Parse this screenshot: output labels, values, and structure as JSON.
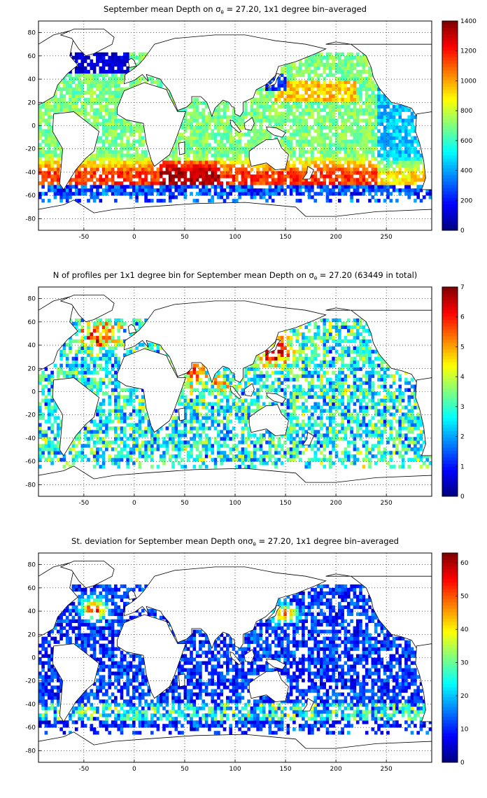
{
  "chart_data": [
    {
      "type": "heatmap",
      "title": {
        "pre": "September mean Depth on ",
        "sigma": "σ",
        "sub": "θ",
        "post": " = 27.20, 1x1 degree bin–averaged"
      },
      "xticks": [
        -50,
        0,
        50,
        100,
        150,
        200,
        250
      ],
      "yticks": [
        80,
        60,
        40,
        20,
        0,
        -20,
        -40,
        -60,
        -80
      ],
      "xlim": [
        -95,
        295
      ],
      "ylim": [
        -90,
        90
      ],
      "colorbar": {
        "ticks": [
          0,
          200,
          400,
          600,
          800,
          1000,
          1200,
          1400
        ],
        "range": [
          0,
          1400
        ],
        "colormap": "jet"
      },
      "grid": true
    },
    {
      "type": "heatmap",
      "title": {
        "pre": "N of profiles per 1x1 degree bin for September mean Depth on ",
        "sigma": "σ",
        "sub": "θ",
        "post": " = 27.20 (63449 in total)"
      },
      "xticks": [
        -50,
        0,
        50,
        100,
        150,
        200,
        250
      ],
      "yticks": [
        80,
        60,
        40,
        20,
        0,
        -20,
        -40,
        -60,
        -80
      ],
      "xlim": [
        -95,
        295
      ],
      "ylim": [
        -90,
        90
      ],
      "colorbar": {
        "ticks": [
          0,
          1,
          2,
          3,
          4,
          5,
          6,
          7
        ],
        "range": [
          0,
          7
        ],
        "colormap": "jet"
      },
      "grid": true
    },
    {
      "type": "heatmap",
      "title": {
        "pre": "St. deviation for September mean Depth on",
        "sigma": "σ",
        "sub": "θ",
        "post": " = 27.20, 1x1 degree bin–averaged"
      },
      "xticks": [
        -50,
        0,
        50,
        100,
        150,
        200,
        250
      ],
      "yticks": [
        80,
        60,
        40,
        20,
        0,
        -20,
        -40,
        -60,
        -80
      ],
      "xlim": [
        -95,
        295
      ],
      "ylim": [
        -90,
        90
      ],
      "colorbar": {
        "ticks": [
          0,
          10,
          20,
          30,
          40,
          50,
          60
        ],
        "range": [
          0,
          63
        ],
        "colormap": "jet"
      },
      "grid": true
    }
  ]
}
